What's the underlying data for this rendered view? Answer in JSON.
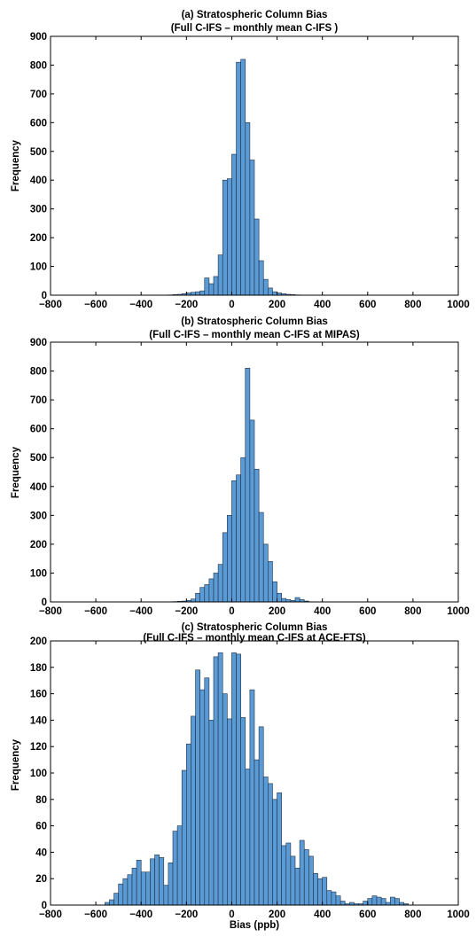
{
  "figure": {
    "xlabel": "Bias (ppb)",
    "bar_color": "#5B9BD5",
    "bar_edge_color": "#1F2F45"
  },
  "chart_data": [
    {
      "type": "bar",
      "title": "(a) Stratospheric Column Bias",
      "subtitle": "(Full C-IFS  – monthly mean C-IFS )",
      "xlabel": "",
      "ylabel": "Frequency",
      "xlim": [
        -800,
        1000
      ],
      "ylim": [
        0,
        900
      ],
      "xticks": [
        -800,
        -600,
        -400,
        -200,
        0,
        200,
        400,
        600,
        800,
        1000
      ],
      "yticks": [
        0,
        100,
        200,
        300,
        400,
        500,
        600,
        700,
        800,
        900
      ],
      "bin_width": 20,
      "bins": [
        [
          -280,
          1
        ],
        [
          -260,
          2
        ],
        [
          -240,
          3
        ],
        [
          -220,
          5
        ],
        [
          -200,
          8
        ],
        [
          -180,
          10
        ],
        [
          -160,
          12
        ],
        [
          -140,
          15
        ],
        [
          -120,
          60
        ],
        [
          -100,
          40
        ],
        [
          -80,
          65
        ],
        [
          -60,
          140
        ],
        [
          -40,
          400
        ],
        [
          -20,
          405
        ],
        [
          0,
          490
        ],
        [
          20,
          810
        ],
        [
          40,
          820
        ],
        [
          60,
          600
        ],
        [
          80,
          470
        ],
        [
          100,
          265
        ],
        [
          120,
          120
        ],
        [
          140,
          55
        ],
        [
          160,
          25
        ],
        [
          180,
          12
        ],
        [
          200,
          8
        ],
        [
          220,
          5
        ],
        [
          240,
          3
        ],
        [
          260,
          2
        ],
        [
          280,
          1
        ]
      ]
    },
    {
      "type": "bar",
      "title": "(b) Stratospheric Column Bias",
      "subtitle": "(Full C-IFS  – monthly mean C-IFS  at MIPAS)",
      "xlabel": "",
      "ylabel": "Frequency",
      "xlim": [
        -800,
        1000
      ],
      "ylim": [
        0,
        900
      ],
      "xticks": [
        -800,
        -600,
        -400,
        -200,
        0,
        200,
        400,
        600,
        800,
        1000
      ],
      "yticks": [
        0,
        100,
        200,
        300,
        400,
        500,
        600,
        700,
        800,
        900
      ],
      "bin_width": 20,
      "bins": [
        [
          -260,
          1
        ],
        [
          -240,
          2
        ],
        [
          -220,
          3
        ],
        [
          -200,
          5
        ],
        [
          -180,
          10
        ],
        [
          -160,
          30
        ],
        [
          -140,
          50
        ],
        [
          -120,
          60
        ],
        [
          -100,
          80
        ],
        [
          -80,
          100
        ],
        [
          -60,
          130
        ],
        [
          -40,
          240
        ],
        [
          -20,
          300
        ],
        [
          0,
          420
        ],
        [
          20,
          440
        ],
        [
          40,
          500
        ],
        [
          60,
          810
        ],
        [
          80,
          630
        ],
        [
          100,
          460
        ],
        [
          120,
          310
        ],
        [
          140,
          200
        ],
        [
          160,
          140
        ],
        [
          180,
          70
        ],
        [
          200,
          30
        ],
        [
          220,
          12
        ],
        [
          240,
          8
        ],
        [
          260,
          5
        ],
        [
          280,
          15
        ],
        [
          300,
          8
        ],
        [
          320,
          3
        ]
      ]
    },
    {
      "type": "bar",
      "title": "(c) Stratospheric Column Bias",
      "subtitle": "(Full C-IFS  – monthly mean C-IFS  at ACE-FTS)",
      "xlabel": "Bias (ppb)",
      "ylabel": "Frequency",
      "xlim": [
        -800,
        1000
      ],
      "ylim": [
        0,
        200
      ],
      "xticks": [
        -800,
        -600,
        -400,
        -200,
        0,
        200,
        400,
        600,
        800,
        1000
      ],
      "yticks": [
        0,
        20,
        40,
        60,
        80,
        100,
        120,
        140,
        160,
        180,
        200
      ],
      "bin_width": 20,
      "bins": [
        [
          -560,
          2
        ],
        [
          -540,
          4
        ],
        [
          -520,
          9
        ],
        [
          -500,
          16
        ],
        [
          -480,
          20
        ],
        [
          -460,
          23
        ],
        [
          -440,
          28
        ],
        [
          -420,
          34
        ],
        [
          -400,
          25
        ],
        [
          -380,
          25
        ],
        [
          -360,
          35
        ],
        [
          -340,
          38
        ],
        [
          -320,
          36
        ],
        [
          -300,
          15
        ],
        [
          -280,
          32
        ],
        [
          -260,
          56
        ],
        [
          -240,
          60
        ],
        [
          -220,
          102
        ],
        [
          -200,
          122
        ],
        [
          -180,
          143
        ],
        [
          -160,
          178
        ],
        [
          -140,
          163
        ],
        [
          -120,
          172
        ],
        [
          -100,
          140
        ],
        [
          -80,
          188
        ],
        [
          -60,
          191
        ],
        [
          -40,
          160
        ],
        [
          -20,
          141
        ],
        [
          0,
          191
        ],
        [
          20,
          190
        ],
        [
          40,
          142
        ],
        [
          60,
          103
        ],
        [
          80,
          163
        ],
        [
          100,
          110
        ],
        [
          120,
          135
        ],
        [
          140,
          97
        ],
        [
          160,
          92
        ],
        [
          180,
          80
        ],
        [
          200,
          85
        ],
        [
          220,
          45
        ],
        [
          240,
          47
        ],
        [
          260,
          37
        ],
        [
          280,
          28
        ],
        [
          300,
          49
        ],
        [
          320,
          42
        ],
        [
          340,
          37
        ],
        [
          360,
          24
        ],
        [
          380,
          20
        ],
        [
          400,
          21
        ],
        [
          420,
          11
        ],
        [
          440,
          10
        ],
        [
          460,
          7
        ],
        [
          480,
          3
        ],
        [
          500,
          1
        ],
        [
          520,
          2
        ],
        [
          540,
          1
        ],
        [
          560,
          1
        ],
        [
          580,
          3
        ],
        [
          600,
          5
        ],
        [
          620,
          7
        ],
        [
          640,
          6
        ],
        [
          660,
          5
        ],
        [
          680,
          2
        ],
        [
          700,
          6
        ],
        [
          720,
          5
        ],
        [
          740,
          2
        ],
        [
          760,
          1
        ]
      ]
    }
  ]
}
